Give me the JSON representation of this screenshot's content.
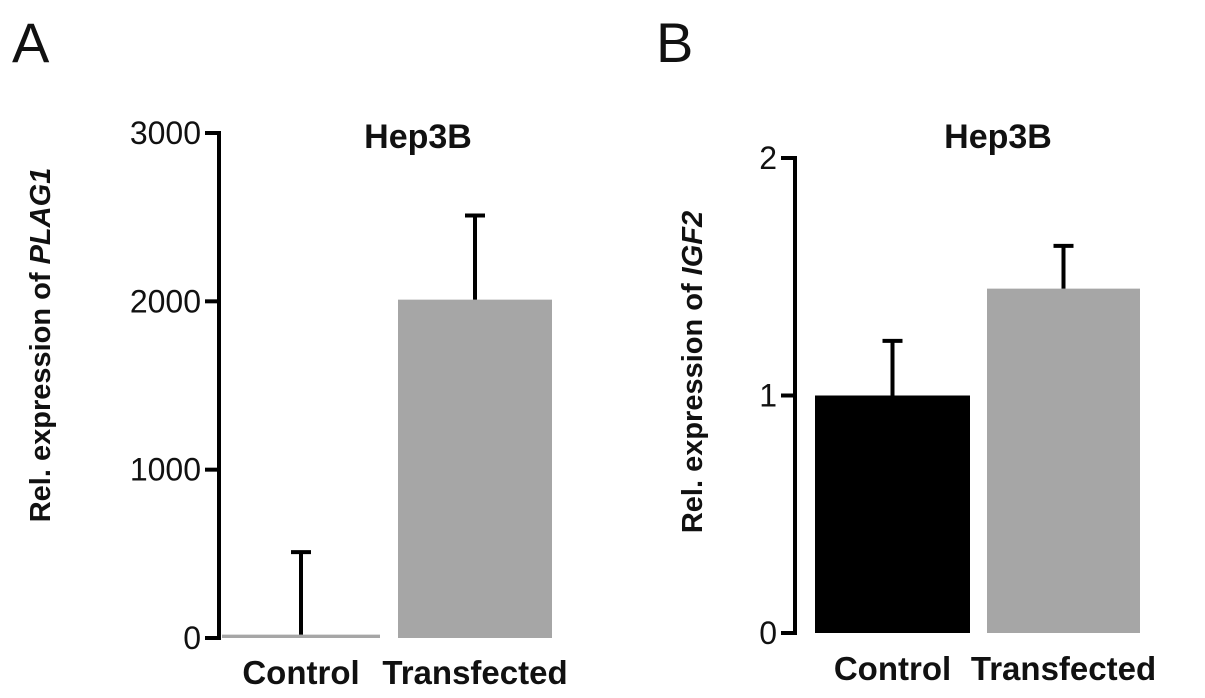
{
  "chart_data": [
    {
      "panel_label": "A",
      "type": "bar",
      "title": "Hep3B",
      "ylabel_prefix": "Rel. expression of ",
      "ylabel_gene": "PLAG1",
      "categories": [
        "Control",
        "Transfected"
      ],
      "values": [
        20,
        2010
      ],
      "errors": [
        490,
        500
      ],
      "ylim": [
        0,
        3000
      ],
      "yticks": [
        0,
        1000,
        2000,
        3000
      ],
      "bar_colors": [
        "#a6a6a6",
        "#a6a6a6"
      ],
      "grid": false
    },
    {
      "panel_label": "B",
      "type": "bar",
      "title": "Hep3B",
      "ylabel_prefix": "Rel. expression of ",
      "ylabel_gene": "IGF2",
      "categories": [
        "Control",
        "Transfected"
      ],
      "values": [
        1.0,
        1.45
      ],
      "errors": [
        0.23,
        0.18
      ],
      "ylim": [
        0,
        2
      ],
      "yticks": [
        0,
        1,
        2
      ],
      "bar_colors": [
        "#000000",
        "#a6a6a6"
      ],
      "grid": false
    }
  ]
}
